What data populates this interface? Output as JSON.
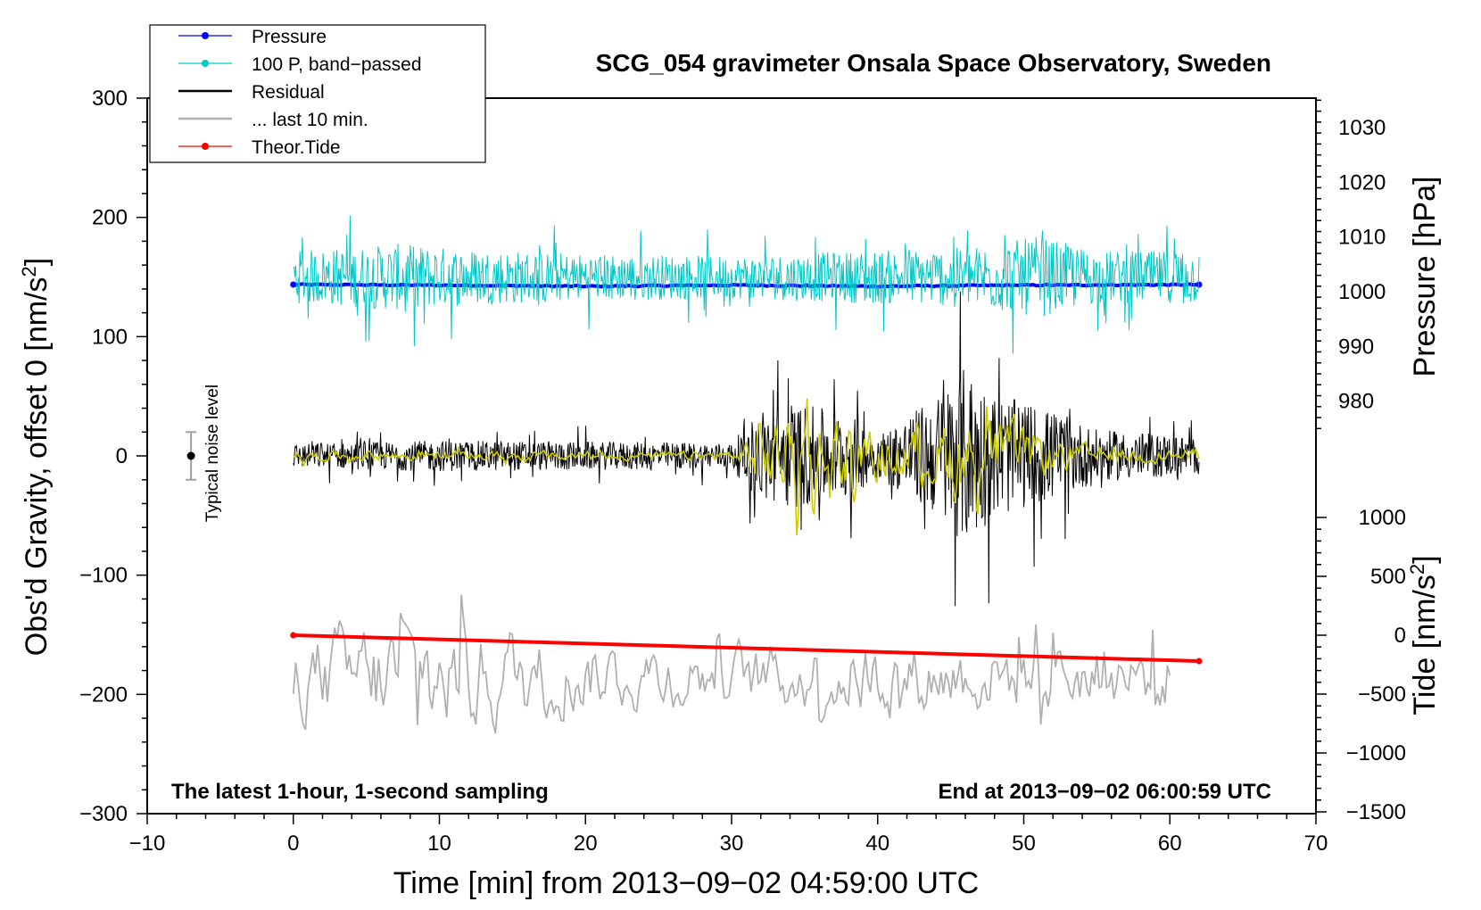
{
  "chart_data": {
    "type": "line",
    "title": "SCG_054 gravimeter Onsala Space Observatory, Sweden",
    "xlabel": "Time [min] from 2013−09−02 04:59:00 UTC",
    "ylabel_left": "Obs'd Gravity, offset 0 [nm/s",
    "ylabel_left_close": "]",
    "ylabel_right_pressure": "Pressure [hPa]",
    "ylabel_right_tide": "Tide [nm/s",
    "ylabel_right_tide_close": "]",
    "superscript": "2",
    "xlim": [
      -10,
      70
    ],
    "ylim_left": [
      -300,
      300
    ],
    "pressure_ylim": [
      975,
      1035
    ],
    "tide_ylim": [
      -1500,
      1000
    ],
    "x_ticks": [
      "−10",
      "0",
      "10",
      "20",
      "30",
      "40",
      "50",
      "60",
      "70"
    ],
    "y_left_ticks": [
      "300",
      "200",
      "100",
      "0",
      "−100",
      "−200",
      "−300"
    ],
    "pressure_ticks": [
      "1030",
      "1020",
      "1010",
      "1000",
      "990",
      "980"
    ],
    "tide_ticks": [
      "1000",
      "500",
      "0",
      "−500",
      "−1000",
      "−1500"
    ],
    "note_left": "The latest 1-hour, 1-second sampling",
    "note_right": "End at 2013−09−02 06:00:59 UTC",
    "noise_label": "Typical noise level",
    "noise_level": {
      "x": -7,
      "y": 0,
      "error": 20
    },
    "legend": [
      {
        "label": "Pressure",
        "color": "#0000ff",
        "marker": true
      },
      {
        "label": "100 P, band−passed",
        "color": "#00c8c8",
        "marker": true
      },
      {
        "label": "Residual",
        "color": "#000000",
        "marker": false
      },
      {
        "label": "... last 10 min.",
        "color": "#b0b0b0",
        "marker": false
      },
      {
        "label": "Theor.Tide",
        "color": "#ff0000",
        "marker": true
      }
    ],
    "series": [
      {
        "name": "Pressure",
        "color": "#0000ff",
        "axis": "pressure",
        "x": [
          0,
          10,
          20,
          30,
          40,
          50,
          62
        ],
        "values": [
          1001.3,
          1001.2,
          1001.0,
          1001.2,
          1001.0,
          1001.2,
          1001.3
        ]
      },
      {
        "name": "100 P, band-passed",
        "color": "#00c8c8",
        "axis": "left",
        "center": 150,
        "amplitude_envelope": {
          "x": [
            0,
            7,
            12,
            20,
            30,
            39,
            46,
            51,
            55,
            62
          ],
          "values": [
            22,
            28,
            24,
            20,
            18,
            22,
            25,
            34,
            22,
            22
          ]
        }
      },
      {
        "name": "Residual",
        "color": "#000000",
        "axis": "left",
        "center": 0,
        "amplitude_envelope": {
          "x": [
            0,
            10,
            20,
            30,
            32,
            34,
            38,
            40,
            44,
            46,
            48,
            52,
            55,
            62
          ],
          "values": [
            10,
            13,
            12,
            11,
            40,
            45,
            36,
            18,
            50,
            75,
            52,
            38,
            22,
            16
          ]
        }
      },
      {
        "name": "Residual (filtered)",
        "color": "#cccc00",
        "axis": "left",
        "center": 0,
        "amplitude_envelope": {
          "x": [
            0,
            30,
            32,
            34,
            37,
            39,
            41,
            43,
            45,
            48,
            52,
            55,
            62
          ],
          "values": [
            3,
            3,
            18,
            28,
            32,
            12,
            22,
            12,
            30,
            24,
            12,
            5,
            4
          ]
        }
      },
      {
        "name": "... last 10 min.",
        "color": "#b0b0b0",
        "axis": "left",
        "center": -185,
        "amplitude_envelope": {
          "x": [
            0,
            5,
            10,
            20,
            30,
            40,
            50,
            60
          ],
          "values": [
            25,
            35,
            38,
            22,
            20,
            24,
            22,
            22
          ]
        },
        "x_range": [
          0,
          60
        ]
      },
      {
        "name": "Theor.Tide",
        "color": "#ff0000",
        "axis": "tide",
        "x": [
          0,
          62
        ],
        "values": [
          0,
          -220
        ]
      }
    ]
  }
}
